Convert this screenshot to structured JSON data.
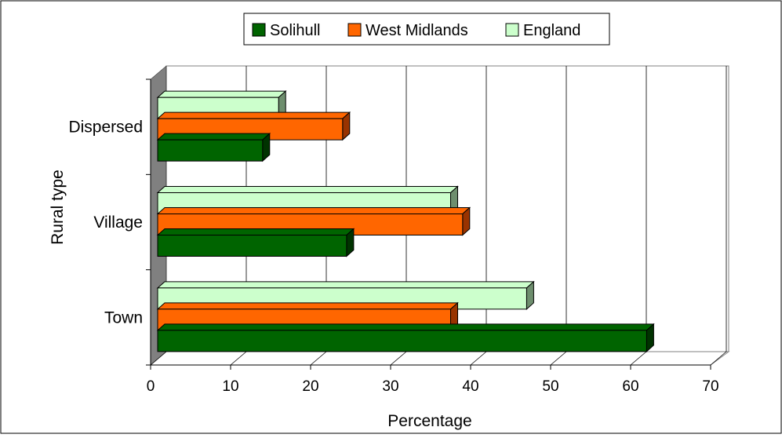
{
  "chart_data": {
    "type": "bar",
    "orientation": "horizontal",
    "three_d": true,
    "categories": [
      "Town",
      "Village",
      "Dispersed"
    ],
    "series": [
      {
        "name": "Solihull",
        "values": [
          62,
          24.5,
          14
        ],
        "color": "#006400",
        "side_color": "#003300"
      },
      {
        "name": "West Midlands",
        "values": [
          37.5,
          39,
          24
        ],
        "color": "#FF6600",
        "side_color": "#993300"
      },
      {
        "name": "England",
        "values": [
          47,
          37.5,
          16
        ],
        "color": "#CCFFCC",
        "side_color": "#6E8E6E"
      }
    ],
    "xlabel": "Percentage",
    "ylabel": "Rural type",
    "xlim": [
      0,
      70
    ],
    "xticks": [
      "0",
      "10",
      "20",
      "30",
      "40",
      "50",
      "60",
      "70"
    ],
    "grid": "vertical",
    "legend": "top"
  }
}
